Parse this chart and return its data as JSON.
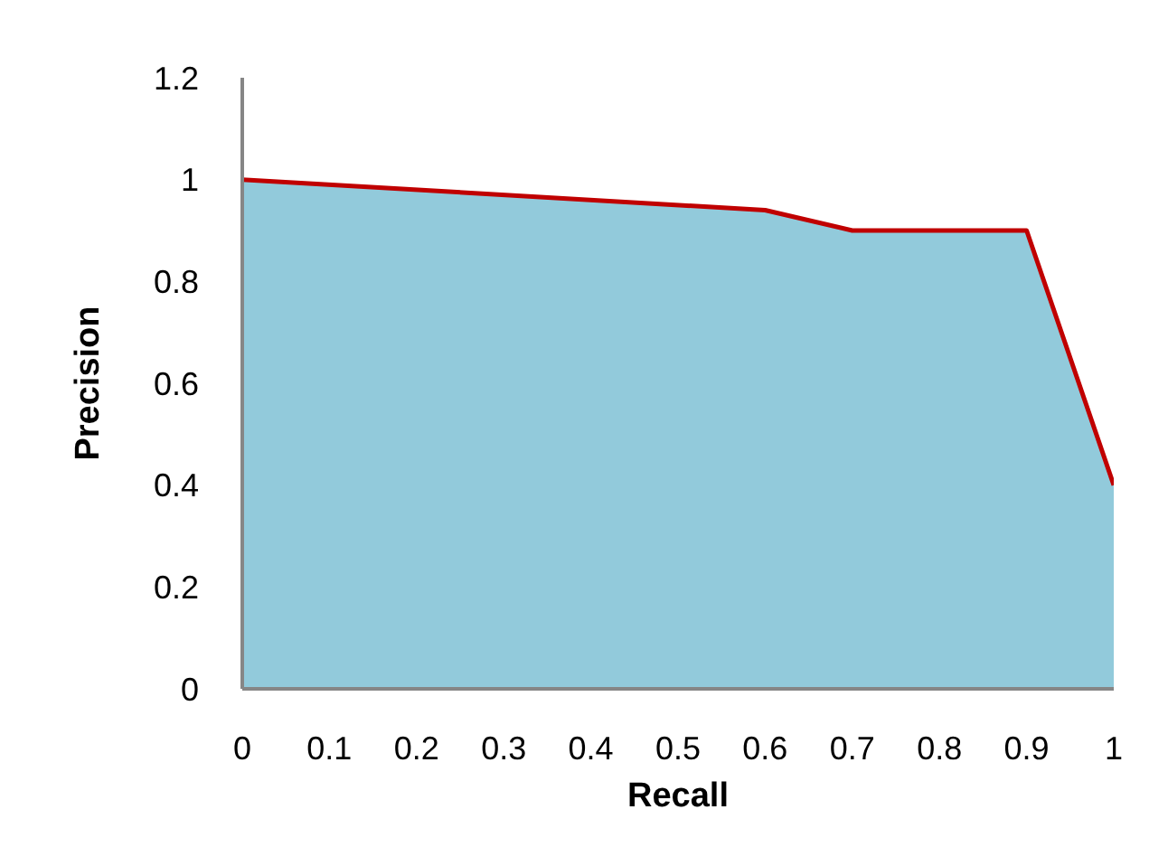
{
  "chart_data": {
    "type": "area",
    "xlabel": "Recall",
    "ylabel": "Precision",
    "x": [
      0,
      0.6,
      0.7,
      0.9,
      1,
      1
    ],
    "series": [
      {
        "color": "#92cadb",
        "values": [
          1,
          0.94,
          0.9,
          0.9,
          0.4,
          0
        ]
      },
      {
        "type": "line",
        "color": "#c00000",
        "x": [
          0,
          0.6,
          0.7,
          0.9,
          1
        ],
        "values": [
          1,
          0.94,
          0.9,
          0.9,
          0.4
        ]
      }
    ],
    "xlim": [
      0,
      1
    ],
    "xticks": [
      0,
      0.1,
      0.2,
      0.3,
      0.4,
      0.5,
      0.6,
      0.7,
      0.8,
      0.9,
      1
    ],
    "ylim": [
      0,
      1.2
    ],
    "yticks": [
      0,
      0.2,
      0.4,
      0.6,
      0.8,
      1,
      1.2
    ],
    "grid": false,
    "legend": false,
    "marker": "none"
  }
}
